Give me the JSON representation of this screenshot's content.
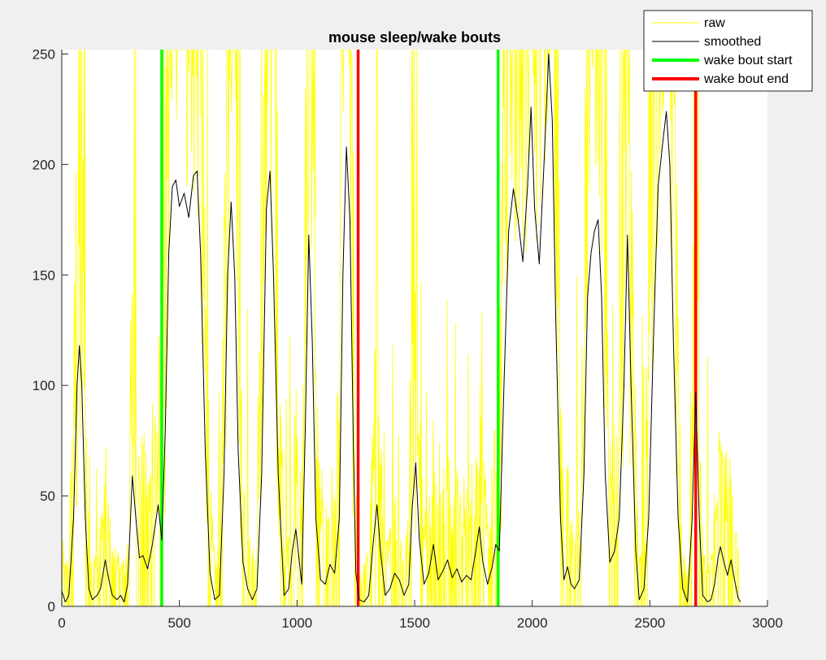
{
  "chart_data": {
    "type": "line",
    "title": "mouse sleep/wake bouts",
    "xlabel": "",
    "ylabel": "",
    "xlim": [
      0,
      3000
    ],
    "ylim": [
      0,
      252
    ],
    "xticks": [
      0,
      500,
      1000,
      1500,
      2000,
      2500,
      3000
    ],
    "yticks": [
      0,
      50,
      100,
      150,
      200,
      250
    ],
    "grid": false,
    "legend": "top-right",
    "series": [
      {
        "name": "raw",
        "color": "#ffff00",
        "kind": "noisy-signal",
        "x_range": [
          0,
          2880
        ],
        "note_values_estimated": true
      },
      {
        "name": "smoothed",
        "color": "#000000",
        "points": [
          [
            0,
            7
          ],
          [
            15,
            2
          ],
          [
            30,
            5
          ],
          [
            50,
            40
          ],
          [
            65,
            100
          ],
          [
            75,
            118
          ],
          [
            85,
            100
          ],
          [
            100,
            40
          ],
          [
            115,
            8
          ],
          [
            130,
            3
          ],
          [
            150,
            5
          ],
          [
            165,
            8
          ],
          [
            185,
            21
          ],
          [
            200,
            12
          ],
          [
            215,
            5
          ],
          [
            235,
            3
          ],
          [
            250,
            5
          ],
          [
            265,
            2
          ],
          [
            280,
            10
          ],
          [
            300,
            59
          ],
          [
            315,
            40
          ],
          [
            330,
            22
          ],
          [
            345,
            23
          ],
          [
            365,
            17
          ],
          [
            385,
            28
          ],
          [
            410,
            46
          ],
          [
            425,
            30
          ],
          [
            440,
            80
          ],
          [
            455,
            160
          ],
          [
            470,
            190
          ],
          [
            485,
            193
          ],
          [
            500,
            181
          ],
          [
            520,
            187
          ],
          [
            540,
            176
          ],
          [
            560,
            195
          ],
          [
            575,
            197
          ],
          [
            590,
            160
          ],
          [
            610,
            70
          ],
          [
            630,
            15
          ],
          [
            650,
            3
          ],
          [
            670,
            5
          ],
          [
            690,
            60
          ],
          [
            705,
            150
          ],
          [
            720,
            183
          ],
          [
            735,
            150
          ],
          [
            750,
            70
          ],
          [
            770,
            20
          ],
          [
            790,
            8
          ],
          [
            810,
            3
          ],
          [
            830,
            8
          ],
          [
            850,
            60
          ],
          [
            870,
            180
          ],
          [
            885,
            197
          ],
          [
            900,
            150
          ],
          [
            920,
            60
          ],
          [
            945,
            5
          ],
          [
            965,
            8
          ],
          [
            980,
            25
          ],
          [
            995,
            35
          ],
          [
            1005,
            25
          ],
          [
            1020,
            10
          ],
          [
            1035,
            80
          ],
          [
            1050,
            168
          ],
          [
            1065,
            120
          ],
          [
            1080,
            40
          ],
          [
            1100,
            12
          ],
          [
            1120,
            10
          ],
          [
            1140,
            19
          ],
          [
            1160,
            15
          ],
          [
            1180,
            40
          ],
          [
            1195,
            150
          ],
          [
            1210,
            208
          ],
          [
            1225,
            175
          ],
          [
            1240,
            70
          ],
          [
            1250,
            15
          ],
          [
            1265,
            3
          ],
          [
            1285,
            2
          ],
          [
            1305,
            5
          ],
          [
            1325,
            30
          ],
          [
            1340,
            46
          ],
          [
            1355,
            25
          ],
          [
            1375,
            5
          ],
          [
            1395,
            8
          ],
          [
            1415,
            15
          ],
          [
            1435,
            12
          ],
          [
            1455,
            5
          ],
          [
            1475,
            10
          ],
          [
            1490,
            45
          ],
          [
            1505,
            65
          ],
          [
            1520,
            30
          ],
          [
            1540,
            10
          ],
          [
            1560,
            15
          ],
          [
            1580,
            28
          ],
          [
            1600,
            12
          ],
          [
            1620,
            16
          ],
          [
            1640,
            21
          ],
          [
            1660,
            13
          ],
          [
            1680,
            17
          ],
          [
            1700,
            11
          ],
          [
            1720,
            14
          ],
          [
            1740,
            12
          ],
          [
            1760,
            25
          ],
          [
            1775,
            36
          ],
          [
            1790,
            20
          ],
          [
            1810,
            10
          ],
          [
            1830,
            18
          ],
          [
            1845,
            28
          ],
          [
            1860,
            25
          ],
          [
            1880,
            100
          ],
          [
            1900,
            170
          ],
          [
            1920,
            189
          ],
          [
            1940,
            175
          ],
          [
            1960,
            156
          ],
          [
            1980,
            190
          ],
          [
            1995,
            226
          ],
          [
            2010,
            180
          ],
          [
            2030,
            155
          ],
          [
            2050,
            200
          ],
          [
            2070,
            250
          ],
          [
            2085,
            220
          ],
          [
            2100,
            130
          ],
          [
            2120,
            40
          ],
          [
            2135,
            12
          ],
          [
            2150,
            18
          ],
          [
            2165,
            10
          ],
          [
            2180,
            8
          ],
          [
            2200,
            12
          ],
          [
            2220,
            60
          ],
          [
            2235,
            140
          ],
          [
            2250,
            160
          ],
          [
            2265,
            170
          ],
          [
            2280,
            175
          ],
          [
            2295,
            140
          ],
          [
            2310,
            60
          ],
          [
            2330,
            20
          ],
          [
            2350,
            25
          ],
          [
            2370,
            40
          ],
          [
            2390,
            100
          ],
          [
            2405,
            168
          ],
          [
            2420,
            100
          ],
          [
            2440,
            25
          ],
          [
            2455,
            3
          ],
          [
            2475,
            8
          ],
          [
            2495,
            40
          ],
          [
            2515,
            120
          ],
          [
            2535,
            190
          ],
          [
            2555,
            210
          ],
          [
            2570,
            224
          ],
          [
            2585,
            200
          ],
          [
            2600,
            120
          ],
          [
            2620,
            40
          ],
          [
            2640,
            8
          ],
          [
            2660,
            2
          ],
          [
            2680,
            40
          ],
          [
            2695,
            97
          ],
          [
            2710,
            40
          ],
          [
            2725,
            5
          ],
          [
            2745,
            2
          ],
          [
            2760,
            3
          ],
          [
            2775,
            10
          ],
          [
            2790,
            22
          ],
          [
            2800,
            27
          ],
          [
            2815,
            20
          ],
          [
            2830,
            14
          ],
          [
            2845,
            21
          ],
          [
            2860,
            12
          ],
          [
            2875,
            4
          ],
          [
            2885,
            2
          ]
        ]
      },
      {
        "name": "wake bout start",
        "color": "#00ff00",
        "kind": "vertical-lines",
        "x": [
          425,
          1855
        ]
      },
      {
        "name": "wake bout end",
        "color": "#ff0000",
        "kind": "vertical-lines",
        "x": [
          1260,
          2695
        ]
      }
    ]
  },
  "legend": {
    "items": [
      {
        "label": "raw",
        "color": "#ffff00"
      },
      {
        "label": "smoothed",
        "color": "#000000"
      },
      {
        "label": "wake bout start",
        "color": "#00ff00"
      },
      {
        "label": "wake bout end",
        "color": "#ff0000"
      }
    ]
  }
}
